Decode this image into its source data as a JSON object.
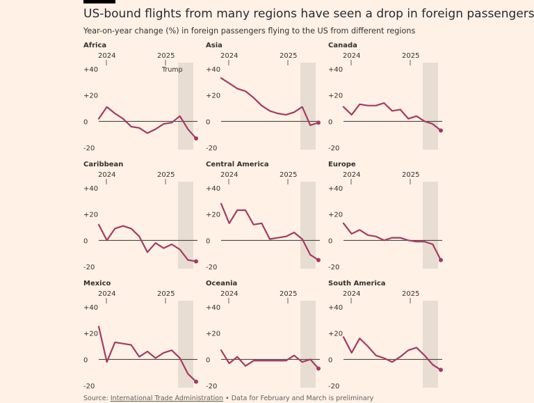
{
  "header": {
    "title": "US-bound flights from many regions have seen a drop in foreign passengers",
    "subtitle": "Year-on-year change (%) in foreign passengers flying to the US from different regions"
  },
  "footer": {
    "source_label": "Source:",
    "source_link": "International Trade Administration",
    "note": "• Data for February and March is preliminary"
  },
  "annotation": {
    "label": "Trump"
  },
  "colors": {
    "line": "#a23a63",
    "shade": "#e8ddd2",
    "background": "#fff1e5",
    "zero_line": "#33302e"
  },
  "chart_data": [
    {
      "type": "line",
      "title": "Africa",
      "ylim": [
        -20,
        40
      ],
      "yticks": [
        "+40",
        "+20",
        "0",
        "-20"
      ],
      "ytick_values": [
        40,
        20,
        0,
        -20
      ],
      "xticks": [
        "2024",
        "2025"
      ],
      "values": [
        2,
        11,
        6,
        2,
        -4,
        -5,
        -9,
        -6,
        -2,
        -1,
        4,
        -6,
        -13
      ]
    },
    {
      "type": "line",
      "title": "Asia",
      "ylim": [
        -20,
        40
      ],
      "yticks": [
        "+40",
        "+20",
        "0",
        "-20"
      ],
      "ytick_values": [
        40,
        20,
        0,
        -20
      ],
      "xticks": [
        "2024",
        "2025"
      ],
      "values": [
        33,
        29,
        25,
        23,
        18,
        12,
        8,
        6,
        5,
        7,
        11,
        -3,
        -1
      ]
    },
    {
      "type": "line",
      "title": "Canada",
      "ylim": [
        -20,
        40
      ],
      "yticks": [
        "+40",
        "+20",
        "0",
        "-20"
      ],
      "ytick_values": [
        40,
        20,
        0,
        -20
      ],
      "xticks": [
        "2024",
        "2025"
      ],
      "values": [
        11,
        5,
        13,
        12,
        12,
        14,
        8,
        9,
        2,
        4,
        0,
        -2,
        -7
      ]
    },
    {
      "type": "line",
      "title": "Caribbean",
      "ylim": [
        -20,
        40
      ],
      "yticks": [
        "+40",
        "+20",
        "0",
        "-20"
      ],
      "ytick_values": [
        40,
        20,
        0,
        -20
      ],
      "xticks": [
        "2024",
        "2025"
      ],
      "values": [
        12,
        0,
        9,
        11,
        9,
        3,
        -9,
        -2,
        -6,
        -3,
        -7,
        -15,
        -16
      ]
    },
    {
      "type": "line",
      "title": "Central America",
      "ylim": [
        -20,
        40
      ],
      "yticks": [
        "+40",
        "+20",
        "0",
        "-20"
      ],
      "ytick_values": [
        40,
        20,
        0,
        -20
      ],
      "xticks": [
        "2024",
        "2025"
      ],
      "values": [
        28,
        13,
        23,
        23,
        12,
        13,
        1,
        2,
        3,
        6,
        1,
        -11,
        -15
      ]
    },
    {
      "type": "line",
      "title": "Europe",
      "ylim": [
        -20,
        40
      ],
      "yticks": [
        "+40",
        "+20",
        "0",
        "-20"
      ],
      "ytick_values": [
        40,
        20,
        0,
        -20
      ],
      "xticks": [
        "2024",
        "2025"
      ],
      "values": [
        13,
        5,
        8,
        4,
        3,
        0,
        2,
        2,
        0,
        -1,
        -1,
        -3,
        -15
      ]
    },
    {
      "type": "line",
      "title": "Mexico",
      "ylim": [
        -20,
        40
      ],
      "yticks": [
        "+40",
        "+20",
        "0",
        "-20"
      ],
      "ytick_values": [
        40,
        20,
        0,
        -20
      ],
      "xticks": [
        "2024",
        "2025"
      ],
      "values": [
        25,
        -2,
        13,
        12,
        11,
        2,
        6,
        1,
        5,
        7,
        1,
        -11,
        -17
      ]
    },
    {
      "type": "line",
      "title": "Oceania",
      "ylim": [
        -20,
        40
      ],
      "yticks": [
        "+40",
        "+20",
        "0",
        "-20"
      ],
      "ytick_values": [
        40,
        20,
        0,
        -20
      ],
      "xticks": [
        "2024",
        "2025"
      ],
      "values": [
        7,
        -3,
        2,
        -5,
        -1,
        -1,
        -1,
        -1,
        -1,
        3,
        -2,
        0,
        -7
      ]
    },
    {
      "type": "line",
      "title": "South America",
      "ylim": [
        -20,
        40
      ],
      "yticks": [
        "+40",
        "+20",
        "0",
        "-20"
      ],
      "ytick_values": [
        40,
        20,
        0,
        -20
      ],
      "xticks": [
        "2024",
        "2025"
      ],
      "values": [
        17,
        5,
        16,
        10,
        3,
        1,
        -2,
        2,
        7,
        9,
        3,
        -4,
        -8
      ]
    }
  ]
}
